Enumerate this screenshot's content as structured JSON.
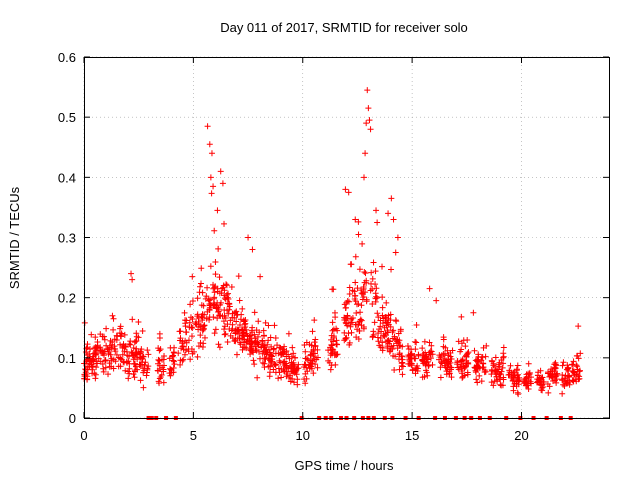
{
  "chart_data": {
    "type": "scatter",
    "title": "Day 011 of 2017, SRMTID for receiver solo",
    "xlabel": "GPS time / hours",
    "ylabel": "SRMTID / TECUs",
    "xlim": [
      0,
      24
    ],
    "ylim": [
      0,
      0.6
    ],
    "xticks": [
      0,
      5,
      10,
      15,
      20
    ],
    "xtick_labels": [
      "0",
      "5",
      "10",
      "15",
      "20"
    ],
    "yticks": [
      0,
      0.1,
      0.2,
      0.3,
      0.4,
      0.5,
      0.6
    ],
    "ytick_labels": [
      "0",
      "0.1",
      "0.2",
      "0.3",
      "0.4",
      "0.5",
      "0.6"
    ],
    "grid": true,
    "marker": "+",
    "series_color": "#ff0000",
    "zero_color": "#ff0000",
    "profile_x": [
      0,
      0.5,
      1,
      1.5,
      2,
      2.5,
      3,
      3.5,
      4,
      4.5,
      5,
      5.5,
      6,
      6.5,
      7,
      7.5,
      8,
      8.5,
      9,
      9.5,
      10,
      10.5,
      11,
      11.5,
      12,
      12.5,
      13,
      13.5,
      14,
      14.5,
      15,
      15.5,
      16,
      16.5,
      17,
      17.5,
      18,
      18.5,
      19,
      19.5,
      20,
      20.5,
      21,
      21.5,
      22,
      22.5
    ],
    "profile_y": [
      0.09,
      0.1,
      0.11,
      0.12,
      0.1,
      0.1,
      0.08,
      0.08,
      0.09,
      0.12,
      0.15,
      0.17,
      0.2,
      0.18,
      0.15,
      0.13,
      0.12,
      0.1,
      0.09,
      0.08,
      0.08,
      0.1,
      0.12,
      0.13,
      0.16,
      0.18,
      0.2,
      0.17,
      0.14,
      0.1,
      0.09,
      0.09,
      0.1,
      0.1,
      0.09,
      0.09,
      0.09,
      0.08,
      0.08,
      0.07,
      0.06,
      0.06,
      0.06,
      0.07,
      0.07,
      0.08
    ],
    "segments": [
      [
        0,
        2.95
      ],
      [
        3.35,
        3.7
      ],
      [
        3.9,
        4.15
      ],
      [
        4.3,
        9.8
      ],
      [
        10.05,
        10.7
      ],
      [
        11.15,
        11.65
      ],
      [
        11.85,
        12.95
      ],
      [
        13.1,
        14.6
      ],
      [
        14.8,
        15.3
      ],
      [
        15.45,
        15.95
      ],
      [
        16.2,
        16.85
      ],
      [
        17.05,
        17.6
      ],
      [
        17.85,
        18.4
      ],
      [
        18.6,
        19.2
      ],
      [
        19.4,
        19.9
      ],
      [
        20.1,
        20.45
      ],
      [
        20.7,
        21.05
      ],
      [
        21.2,
        21.65
      ],
      [
        21.85,
        22.2
      ],
      [
        22.3,
        22.7
      ]
    ],
    "spikes": [
      [
        5.65,
        0.485
      ],
      [
        5.75,
        0.455
      ],
      [
        5.85,
        0.44
      ],
      [
        5.8,
        0.4
      ],
      [
        5.9,
        0.385
      ],
      [
        6.1,
        0.345
      ],
      [
        6.25,
        0.41
      ],
      [
        6.35,
        0.39
      ],
      [
        7.5,
        0.3
      ],
      [
        7.7,
        0.28
      ],
      [
        11.95,
        0.38
      ],
      [
        12.1,
        0.375
      ],
      [
        12.4,
        0.33
      ],
      [
        12.55,
        0.305
      ],
      [
        12.95,
        0.545
      ],
      [
        13.0,
        0.515
      ],
      [
        13.05,
        0.495
      ],
      [
        12.9,
        0.49
      ],
      [
        13.1,
        0.48
      ],
      [
        12.85,
        0.44
      ],
      [
        12.8,
        0.4
      ],
      [
        13.35,
        0.345
      ],
      [
        13.4,
        0.325
      ],
      [
        13.9,
        0.34
      ],
      [
        14.05,
        0.365
      ],
      [
        14.15,
        0.33
      ],
      [
        14.25,
        0.275
      ],
      [
        14.35,
        0.3
      ],
      [
        15.8,
        0.215
      ],
      [
        16.1,
        0.195
      ],
      [
        17.8,
        0.175
      ],
      [
        2.15,
        0.24
      ],
      [
        2.2,
        0.23
      ],
      [
        4.95,
        0.235
      ],
      [
        8.05,
        0.235
      ],
      [
        1.3,
        0.17
      ],
      [
        1.35,
        0.165
      ]
    ],
    "zeros_x": [
      2.95,
      3.1,
      3.3,
      3.75,
      4.2,
      9.95,
      10.75,
      11.05,
      11.3,
      11.75,
      12.0,
      12.35,
      12.75,
      13.0,
      13.25,
      13.75,
      14.1,
      14.7,
      15.3,
      16.05,
      16.5,
      17.0,
      17.4,
      17.7,
      18.1,
      18.55,
      19.3,
      19.95,
      20.55,
      21.15,
      21.8,
      22.25
    ]
  }
}
